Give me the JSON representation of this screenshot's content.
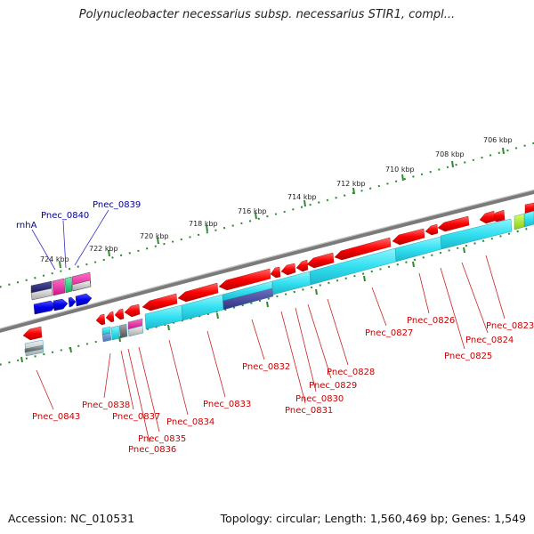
{
  "title": "Polynucleobacter necessarius subsp. necessarius STIR1, compl...",
  "footer": {
    "accession": "Accession: NC_010531",
    "stats": "Topology: circular; Length: 1,560,469 bp; Genes: 1,549"
  },
  "ruler": [
    "706 kbp",
    "708 kbp",
    "710 kbp",
    "712 kbp",
    "714 kbp",
    "716 kbp",
    "718 kbp",
    "720 kbp",
    "722 kbp",
    "724 kbp"
  ],
  "gene_labels_forward": [
    "rnhA",
    "Pnec_0840",
    "Pnec_0839"
  ],
  "gene_labels_reverse": [
    "Pnec_0823",
    "Pnec_0824",
    "Pnec_0825",
    "Pnec_0826",
    "Pnec_0827",
    "Pnec_0828",
    "Pnec_0829",
    "Pnec_0830",
    "Pnec_0831",
    "Pnec_0832",
    "Pnec_0833",
    "Pnec_0834",
    "Pnec_0835",
    "Pnec_0836",
    "Pnec_0837",
    "Pnec_0838",
    "Pnec_0843"
  ],
  "colors": {
    "backbone": "#888888",
    "ticks": "#2d8a2d",
    "reverse_cds": "#ff0000",
    "forward_cds": "#0000ee",
    "cyan_track": "#33e0f0",
    "label_red": "#cc0000",
    "label_blue": "#000099"
  }
}
